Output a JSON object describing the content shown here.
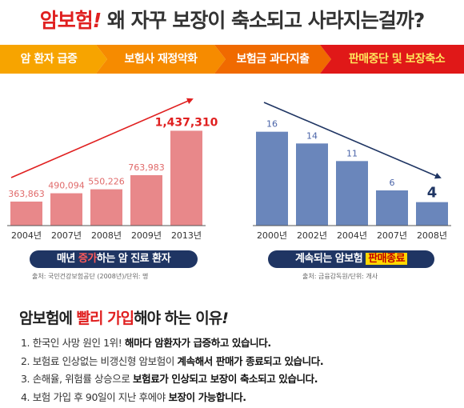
{
  "headline": {
    "accent": "암보험",
    "bang": "!",
    "rest": "왜 자꾸 보장이 축소되고 사라지는걸까?"
  },
  "flow": [
    {
      "label": "암 환자 급증",
      "color": "#f7a400"
    },
    {
      "label": "보험사 재정악화",
      "color": "#f68b00"
    },
    {
      "label": "보험금 과다지출",
      "color": "#f06a00"
    },
    {
      "label": "판매중단 및 보장축소",
      "color": "#e01818",
      "text_color": "#ffe45c"
    }
  ],
  "chart_data": [
    {
      "type": "bar",
      "categories": [
        "2004년",
        "2007년",
        "2008년",
        "2009년",
        "2013년"
      ],
      "values": [
        363863,
        490094,
        550226,
        763983,
        1437310
      ],
      "value_labels": [
        "363,863",
        "490,094",
        "550,226",
        "763,983",
        "1,437,310"
      ],
      "ylim": [
        0,
        1600000
      ],
      "bar_color": "#e8888a",
      "trend": "up",
      "grid": false,
      "caption": {
        "pre": "매년 ",
        "hl": "증가",
        "post": "하는 암 진료 환자"
      },
      "source": "출처: 국민건강보험공단 (2008년)/단위: 명"
    },
    {
      "type": "bar",
      "categories": [
        "2000년",
        "2002년",
        "2004년",
        "2007년",
        "2008년"
      ],
      "values": [
        16,
        14,
        11,
        6,
        4
      ],
      "value_labels": [
        "16",
        "14",
        "11",
        "6",
        "4"
      ],
      "ylim": [
        0,
        18
      ],
      "bar_color": "#6a86bb",
      "trend": "down",
      "grid": false,
      "caption": {
        "pre": "계속되는 암보험 ",
        "hl": "판매종료",
        "post": ""
      },
      "source": "출처: 금융감독원/단위: 개사"
    }
  ],
  "reasons": {
    "title_pre": "암보험에 ",
    "title_red": "빨리 가입",
    "title_post": "해야 하는 이유",
    "title_bang": "!",
    "items": [
      {
        "plain": "1. 한국인 사망 원인 1위! ",
        "bold": "해마다 암환자가 급증하고 있습니다.",
        "tail": ""
      },
      {
        "plain": "2. 보험료 인상없는 비갱신형 암보험이 ",
        "bold": "계속해서 판매가 종료되고 있습니다.",
        "tail": ""
      },
      {
        "plain": "3. 손해율, 위험률 상승으로 ",
        "bold": "보험료가 인상되고 보장이 축소되고 있습니다.",
        "tail": ""
      },
      {
        "plain": "4. 보험 가입 후 90일이 지난 후에야 ",
        "bold": "보장이 가능합니다.",
        "tail": ""
      }
    ]
  }
}
